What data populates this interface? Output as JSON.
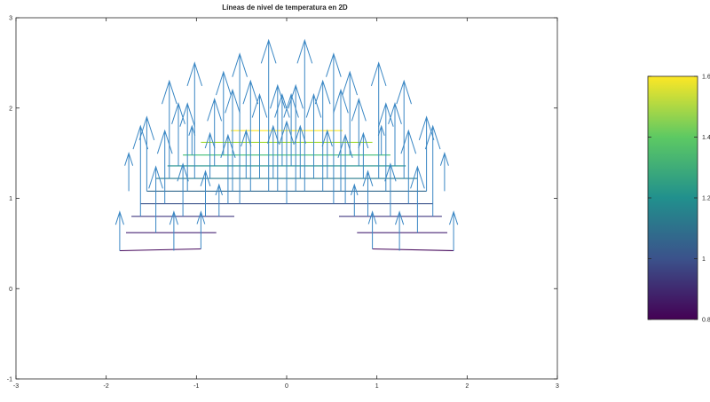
{
  "chart_data": {
    "type": "contour",
    "title": "Líneas de nivel de temperatura en 2D",
    "xlabel": "",
    "ylabel": "",
    "xlim": [
      -3,
      3
    ],
    "ylim": [
      -1,
      3
    ],
    "xticks": [
      -3,
      -2,
      -1,
      0,
      1,
      2,
      3
    ],
    "yticks": [
      -1,
      0,
      1,
      2,
      3
    ],
    "grid": false,
    "quiver_color": "#3a87c4",
    "colorbar": {
      "range": [
        0.8,
        1.6
      ],
      "ticks": [
        0.8,
        1,
        1.2,
        1.4,
        1.6
      ],
      "colormap": "viridis",
      "stops": [
        "#440154",
        "#3b528b",
        "#21908d",
        "#5dc963",
        "#fde725"
      ]
    },
    "contour_levels": [
      {
        "level": 0.85,
        "color": "#46085c",
        "segments": [
          [
            [
              -1.85,
              0.42
            ],
            [
              -0.95,
              0.44
            ]
          ],
          [
            [
              0.95,
              0.44
            ],
            [
              1.85,
              0.42
            ]
          ]
        ]
      },
      {
        "level": 0.9,
        "color": "#482475",
        "segments": [
          [
            [
              -1.78,
              0.62
            ],
            [
              -0.78,
              0.62
            ]
          ],
          [
            [
              0.78,
              0.62
            ],
            [
              1.78,
              0.62
            ]
          ]
        ]
      },
      {
        "level": 0.95,
        "color": "#443a83",
        "segments": [
          [
            [
              -1.72,
              0.8
            ],
            [
              -0.58,
              0.8
            ]
          ],
          [
            [
              0.58,
              0.8
            ],
            [
              1.72,
              0.8
            ]
          ]
        ]
      },
      {
        "level": 1.0,
        "color": "#3b528b",
        "segments": [
          [
            [
              -1.62,
              0.94
            ],
            [
              1.62,
              0.94
            ]
          ]
        ]
      },
      {
        "level": 1.05,
        "color": "#31688e",
        "segments": [
          [
            [
              -1.55,
              1.08
            ],
            [
              1.55,
              1.08
            ]
          ]
        ]
      },
      {
        "level": 1.1,
        "color": "#287c8e",
        "segments": [
          [
            [
              -1.45,
              1.22
            ],
            [
              1.45,
              1.22
            ]
          ]
        ]
      },
      {
        "level": 1.15,
        "color": "#21908d",
        "segments": [
          [
            [
              -1.32,
              1.36
            ],
            [
              1.32,
              1.36
            ]
          ]
        ]
      },
      {
        "level": 1.25,
        "color": "#3dbc74",
        "segments": [
          [
            [
              -1.15,
              1.48
            ],
            [
              1.15,
              1.48
            ]
          ]
        ]
      },
      {
        "level": 1.4,
        "color": "#a2da37",
        "segments": [
          [
            [
              -0.95,
              1.62
            ],
            [
              0.95,
              1.62
            ]
          ]
        ]
      },
      {
        "level": 1.55,
        "color": "#fde725",
        "segments": [
          [
            [
              -0.62,
              1.75
            ],
            [
              0.62,
              1.75
            ]
          ]
        ]
      }
    ],
    "quiver": [
      {
        "x": -1.85,
        "y0": 0.42,
        "y1": 0.85
      },
      {
        "x": -1.75,
        "y0": 1.08,
        "y1": 1.5
      },
      {
        "x": -1.62,
        "y0": 0.8,
        "y1": 1.8
      },
      {
        "x": -1.55,
        "y0": 1.08,
        "y1": 1.9
      },
      {
        "x": -1.45,
        "y0": 0.62,
        "y1": 1.35
      },
      {
        "x": -1.35,
        "y0": 0.94,
        "y1": 1.75
      },
      {
        "x": -1.3,
        "y0": 1.22,
        "y1": 2.3
      },
      {
        "x": -1.25,
        "y0": 0.42,
        "y1": 0.85
      },
      {
        "x": -1.2,
        "y0": 1.36,
        "y1": 2.05
      },
      {
        "x": -1.15,
        "y0": 0.8,
        "y1": 1.38
      },
      {
        "x": -1.1,
        "y0": 1.08,
        "y1": 2.05
      },
      {
        "x": -1.05,
        "y0": 1.48,
        "y1": 1.8
      },
      {
        "x": -1.02,
        "y0": 1.22,
        "y1": 2.5
      },
      {
        "x": -0.95,
        "y0": 0.44,
        "y1": 0.85
      },
      {
        "x": -0.9,
        "y0": 0.8,
        "y1": 1.3
      },
      {
        "x": -0.85,
        "y0": 1.22,
        "y1": 1.72
      },
      {
        "x": -0.8,
        "y0": 1.36,
        "y1": 2.1
      },
      {
        "x": -0.75,
        "y0": 0.8,
        "y1": 1.15
      },
      {
        "x": -0.7,
        "y0": 1.48,
        "y1": 2.4
      },
      {
        "x": -0.65,
        "y0": 0.94,
        "y1": 1.7
      },
      {
        "x": -0.6,
        "y0": 1.08,
        "y1": 2.2
      },
      {
        "x": -0.52,
        "y0": 0.94,
        "y1": 2.6
      },
      {
        "x": -0.45,
        "y0": 1.22,
        "y1": 1.75
      },
      {
        "x": -0.4,
        "y0": 1.08,
        "y1": 2.3
      },
      {
        "x": -0.3,
        "y0": 1.22,
        "y1": 2.15
      },
      {
        "x": -0.2,
        "y0": 1.08,
        "y1": 2.75
      },
      {
        "x": -0.15,
        "y0": 1.22,
        "y1": 1.8
      },
      {
        "x": -0.1,
        "y0": 1.08,
        "y1": 2.25
      },
      {
        "x": -0.05,
        "y0": 1.36,
        "y1": 2.15
      },
      {
        "x": 0.0,
        "y0": 0.94,
        "y1": 1.85
      },
      {
        "x": 0.05,
        "y0": 1.36,
        "y1": 2.15
      },
      {
        "x": 0.1,
        "y0": 1.08,
        "y1": 2.25
      },
      {
        "x": 0.15,
        "y0": 1.22,
        "y1": 1.8
      },
      {
        "x": 0.2,
        "y0": 1.08,
        "y1": 2.75
      },
      {
        "x": 0.3,
        "y0": 1.22,
        "y1": 2.15
      },
      {
        "x": 0.4,
        "y0": 1.08,
        "y1": 2.3
      },
      {
        "x": 0.45,
        "y0": 1.22,
        "y1": 1.75
      },
      {
        "x": 0.52,
        "y0": 0.94,
        "y1": 2.6
      },
      {
        "x": 0.6,
        "y0": 1.08,
        "y1": 2.2
      },
      {
        "x": 0.65,
        "y0": 0.94,
        "y1": 1.7
      },
      {
        "x": 0.7,
        "y0": 1.48,
        "y1": 2.4
      },
      {
        "x": 0.75,
        "y0": 0.8,
        "y1": 1.15
      },
      {
        "x": 0.8,
        "y0": 1.36,
        "y1": 2.1
      },
      {
        "x": 0.85,
        "y0": 1.22,
        "y1": 1.72
      },
      {
        "x": 0.9,
        "y0": 0.8,
        "y1": 1.3
      },
      {
        "x": 0.95,
        "y0": 0.44,
        "y1": 0.85
      },
      {
        "x": 1.02,
        "y0": 1.22,
        "y1": 2.5
      },
      {
        "x": 1.05,
        "y0": 1.48,
        "y1": 1.8
      },
      {
        "x": 1.1,
        "y0": 1.08,
        "y1": 2.05
      },
      {
        "x": 1.15,
        "y0": 0.8,
        "y1": 1.38
      },
      {
        "x": 1.2,
        "y0": 1.36,
        "y1": 2.05
      },
      {
        "x": 1.25,
        "y0": 0.42,
        "y1": 0.85
      },
      {
        "x": 1.3,
        "y0": 1.22,
        "y1": 2.3
      },
      {
        "x": 1.35,
        "y0": 0.94,
        "y1": 1.75
      },
      {
        "x": 1.45,
        "y0": 0.62,
        "y1": 1.35
      },
      {
        "x": 1.55,
        "y0": 1.08,
        "y1": 1.9
      },
      {
        "x": 1.62,
        "y0": 0.8,
        "y1": 1.8
      },
      {
        "x": 1.75,
        "y0": 1.08,
        "y1": 1.5
      },
      {
        "x": 1.85,
        "y0": 0.42,
        "y1": 0.85
      }
    ]
  }
}
